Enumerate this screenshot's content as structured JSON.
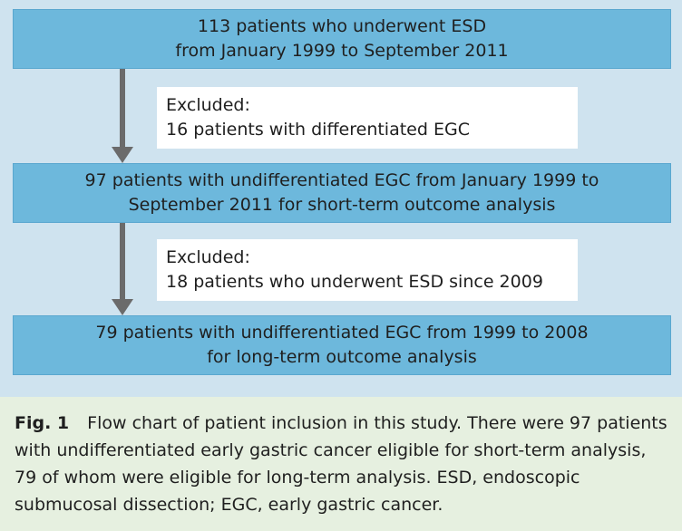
{
  "boxes": [
    {
      "line1": "113 patients who underwent ESD",
      "line2": "from January 1999 to September 2011"
    },
    {
      "line1": "97 patients with undifferentiated EGC from January 1999 to",
      "line2": "September 2011 for short-term outcome analysis"
    },
    {
      "line1": "79 patients with undifferentiated EGC from 1999 to 2008",
      "line2": "for long-term outcome analysis"
    }
  ],
  "exclusions": [
    {
      "title": "Excluded:",
      "text": "16 patients with differentiated EGC"
    },
    {
      "title": "Excluded:",
      "text": "18 patients who underwent ESD since 2009"
    }
  ],
  "caption": {
    "label": "Fig. 1",
    "text": "Flow chart of patient inclusion in this study. There were 97 patients with undifferentiated early gastric cancer eligible for short-term analysis, 79 of whom were eligible for long-term analysis. ESD, endoscopic submucosal dissection; EGC, early gastric cancer."
  },
  "colors": {
    "box_fill": "#6db8dc",
    "diagram_background": "#cfe3ef",
    "caption_background": "#e6f0e0",
    "arrow": "#6b6b6b"
  }
}
